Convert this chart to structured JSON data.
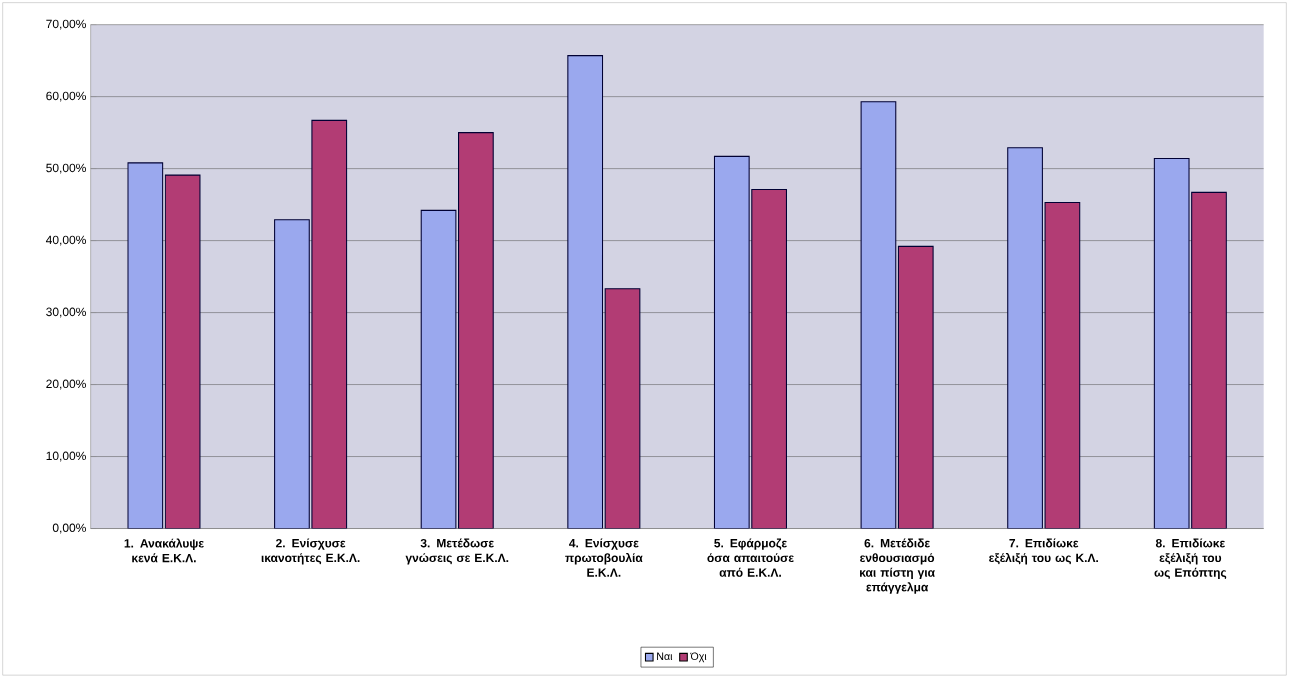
{
  "chart_data": {
    "type": "bar",
    "categories": [
      "1. Ανακάλυψε κενά Ε.Κ.Λ.",
      "2. Ενίσχυσε ικανοτήτες Ε.Κ.Λ.",
      "3. Μετέδωσε γνώσεις σε Ε.Κ.Λ.",
      "4. Ενίσχυσε πρωτοβουλία Ε.Κ.Λ.",
      "5. Εφάρμοζε όσα απαιτούσε από Ε.Κ.Λ.",
      "6. Μετέδιδε ενθουσιασμό και πίστη για επάγγελμα",
      "7. Επιδίωκε εξέλιξή του ως Κ.Λ.",
      "8. Επιδίωκε εξέλιξή του ως Επόπτης"
    ],
    "series": [
      {
        "name": "Ναι",
        "color": "#9aa8ee",
        "values": [
          50.8,
          42.9,
          44.2,
          65.7,
          51.7,
          59.3,
          52.9,
          51.4
        ]
      },
      {
        "name": "Όχι",
        "color": "#b23c74",
        "values": [
          49.1,
          56.7,
          55.0,
          33.3,
          47.1,
          39.2,
          45.3,
          46.7
        ]
      }
    ],
    "ylim": [
      0,
      70
    ],
    "yticks": [
      {
        "value": 0,
        "label": "0,00%"
      },
      {
        "value": 10,
        "label": "10,00%"
      },
      {
        "value": 20,
        "label": "20,00%"
      },
      {
        "value": 30,
        "label": "30,00%"
      },
      {
        "value": 40,
        "label": "40,00%"
      },
      {
        "value": 50,
        "label": "50,00%"
      },
      {
        "value": 60,
        "label": "60,00%"
      },
      {
        "value": 70,
        "label": "70,00%"
      }
    ],
    "grid": "y",
    "legend": "bottom"
  }
}
